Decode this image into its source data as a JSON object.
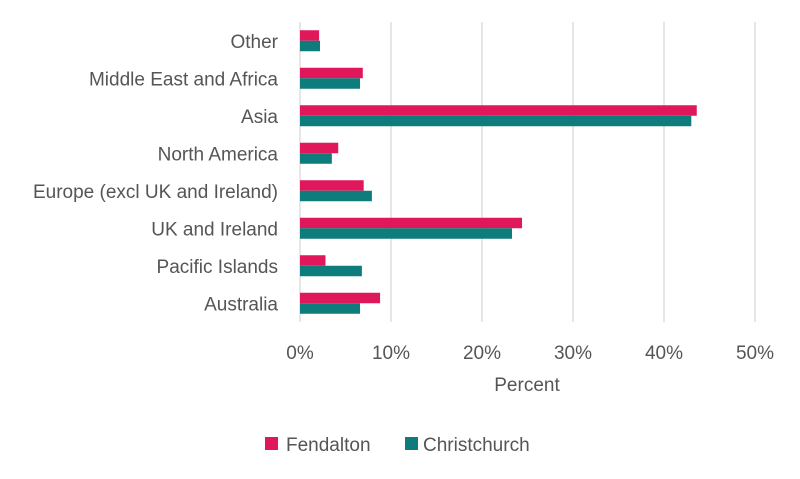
{
  "chart_data": {
    "type": "bar",
    "orientation": "horizontal",
    "categories": [
      "Australia",
      "Pacific Islands",
      "UK and Ireland",
      "Europe (excl UK and Ireland)",
      "North America",
      "Asia",
      "Middle East and Africa",
      "Other"
    ],
    "series": [
      {
        "name": "Fendalton",
        "color": "#e0175a",
        "values": [
          8.8,
          2.8,
          24.4,
          7.0,
          4.2,
          43.6,
          6.9,
          2.1
        ]
      },
      {
        "name": "Christchurch",
        "color": "#0e7c7b",
        "values": [
          6.6,
          6.8,
          23.3,
          7.9,
          3.5,
          43.0,
          6.6,
          2.2
        ]
      }
    ],
    "xlabel": "Percent",
    "xlim": [
      0,
      50
    ],
    "xticks": [
      0,
      10,
      20,
      30,
      40,
      50
    ],
    "tick_format": "percent",
    "grid": true,
    "legend_position": "bottom"
  }
}
